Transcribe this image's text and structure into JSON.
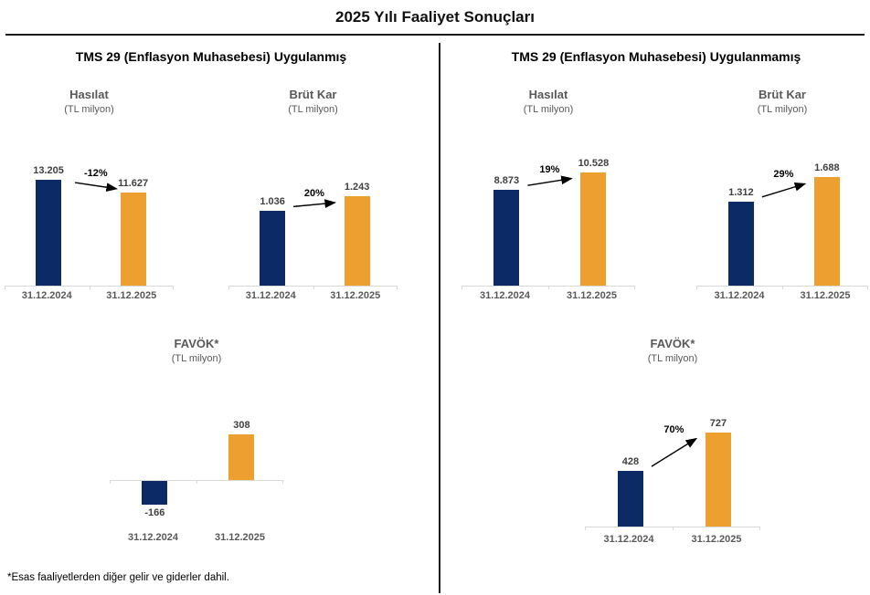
{
  "page": {
    "title": "2025 Yılı Faaliyet Sonuçları",
    "footnote": "*Esas faaliyetlerden diğer gelir ve giderler dahil."
  },
  "panels": [
    {
      "header": "TMS 29 (Enflasyon Muhasebesi) Uygulanmış"
    },
    {
      "header": "TMS 29 (Enflasyon Muhasebesi) Uygulanmamış"
    }
  ],
  "colors": {
    "bar_2024": "#0C2A65",
    "bar_2025": "#EDA02F",
    "axis_line": "#D9D9D9",
    "label_gray": "#595959",
    "value_gray": "#404040"
  },
  "chart_data": [
    {
      "type": "bar",
      "panel": "TMS 29 (Enflasyon Muhasebesi) Uygulanmış",
      "title": "Hasılat",
      "subtitle": "(TL milyon)",
      "categories": [
        "31.12.2024",
        "31.12.2025"
      ],
      "values": [
        13205,
        11627
      ],
      "value_labels": [
        "13.205",
        "11.627"
      ],
      "change_label": "-12%",
      "change_direction": "down",
      "ylim": [
        0,
        14800
      ],
      "series_colors": [
        "#0C2A65",
        "#EDA02F"
      ]
    },
    {
      "type": "bar",
      "panel": "TMS 29 (Enflasyon Muhasebesi) Uygulanmış",
      "title": "Brüt Kar",
      "subtitle": "(TL milyon)",
      "categories": [
        "31.12.2024",
        "31.12.2025"
      ],
      "values": [
        1036,
        1243
      ],
      "value_labels": [
        "1.036",
        "1.243"
      ],
      "change_label": "20%",
      "change_direction": "up",
      "ylim": [
        0,
        1650
      ],
      "series_colors": [
        "#0C2A65",
        "#EDA02F"
      ]
    },
    {
      "type": "bar",
      "panel": "TMS 29 (Enflasyon Muhasebesi) Uygulanmış",
      "title": "FAVÖK*",
      "subtitle": "(TL milyon)",
      "categories": [
        "31.12.2024",
        "31.12.2025"
      ],
      "values": [
        -166,
        308
      ],
      "value_labels": [
        "-166",
        "308"
      ],
      "change_label": null,
      "change_direction": null,
      "ylim": [
        -250,
        600
      ],
      "series_colors": [
        "#0C2A65",
        "#EDA02F"
      ]
    },
    {
      "type": "bar",
      "panel": "TMS 29 (Enflasyon Muhasebesi) Uygulanmamış",
      "title": "Hasılat",
      "subtitle": "(TL milyon)",
      "categories": [
        "31.12.2024",
        "31.12.2025"
      ],
      "values": [
        8873,
        10528
      ],
      "value_labels": [
        "8.873",
        "10.528"
      ],
      "change_label": "19%",
      "change_direction": "up",
      "ylim": [
        0,
        11000
      ],
      "series_colors": [
        "#0C2A65",
        "#EDA02F"
      ]
    },
    {
      "type": "bar",
      "panel": "TMS 29 (Enflasyon Muhasebesi) Uygulanmamış",
      "title": "Brüt Kar",
      "subtitle": "(TL milyon)",
      "categories": [
        "31.12.2024",
        "31.12.2025"
      ],
      "values": [
        1312,
        1688
      ],
      "value_labels": [
        "1.312",
        "1.688"
      ],
      "change_label": "29%",
      "change_direction": "up",
      "ylim": [
        0,
        1850
      ],
      "series_colors": [
        "#0C2A65",
        "#EDA02F"
      ]
    },
    {
      "type": "bar",
      "panel": "TMS 29 (Enflasyon Muhasebesi) Uygulanmamış",
      "title": "FAVÖK*",
      "subtitle": "(TL milyon)",
      "categories": [
        "31.12.2024",
        "31.12.2025"
      ],
      "values": [
        428,
        727
      ],
      "value_labels": [
        "428",
        "727"
      ],
      "change_label": "70%",
      "change_direction": "up",
      "ylim": [
        0,
        900
      ],
      "series_colors": [
        "#0C2A65",
        "#EDA02F"
      ]
    }
  ]
}
